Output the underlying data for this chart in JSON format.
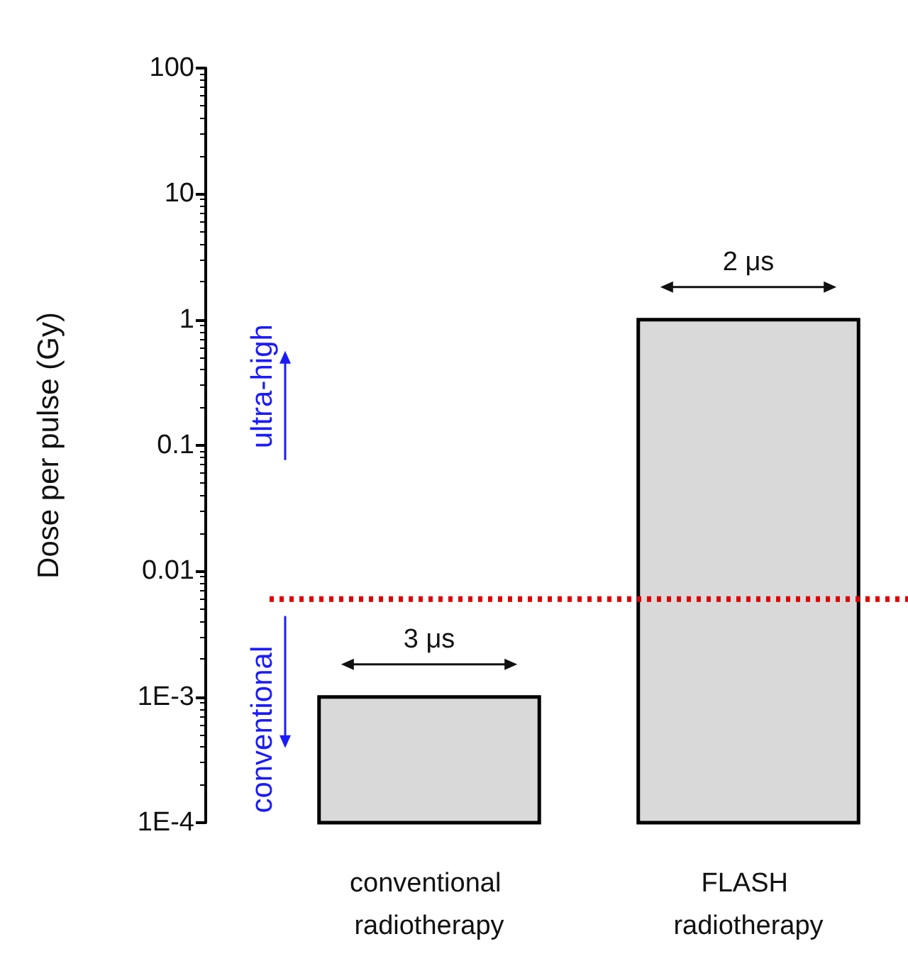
{
  "chart_data": {
    "type": "bar",
    "ylabel": "Dose per pulse (Gy)",
    "categories": [
      "conventional radiotherapy",
      "FLASH radiotherapy"
    ],
    "values": [
      0.001,
      1
    ],
    "color": "#d9d9d9",
    "log": "y",
    "ylim": [
      0.0001,
      100
    ],
    "yticks": [
      {
        "value": 0.0001,
        "label": "1E-4"
      },
      {
        "value": 0.001,
        "label": "1E-3"
      },
      0.01,
      0.1,
      1,
      10,
      100
    ],
    "ref_lines": [
      {
        "axis": "y",
        "value": 0.006,
        "color": "#e00000",
        "line_style": "dotted"
      }
    ],
    "annotations": [
      "3 μs",
      "2 μs",
      "ultra-high",
      "conventional"
    ]
  }
}
